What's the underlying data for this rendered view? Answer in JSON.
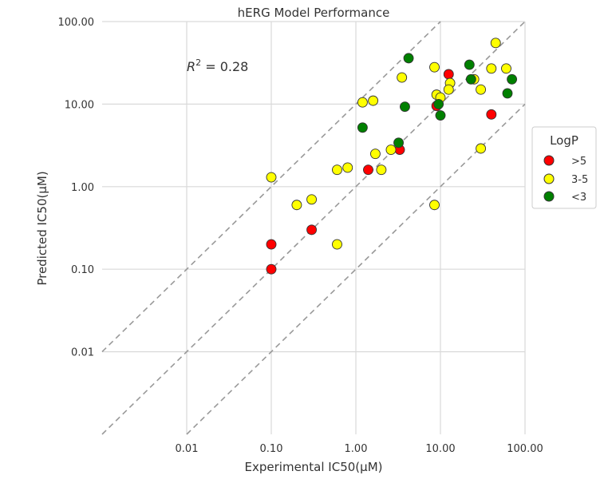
{
  "chart_data": {
    "type": "scatter",
    "title": "hERG Model Performance",
    "xlabel": "Experimental IC50(μM)",
    "ylabel": "Predicted IC50(μM)",
    "xscale": "log",
    "yscale": "log",
    "xlim": [
      0.001,
      100
    ],
    "ylim": [
      0.001,
      100
    ],
    "xticks": [
      0.01,
      0.1,
      1,
      10,
      100
    ],
    "xtick_labels": [
      "0.01",
      "0.10",
      "1.00",
      "10.00",
      "100.00"
    ],
    "yticks": [
      0.01,
      0.1,
      1,
      10,
      100
    ],
    "ytick_labels": [
      "0.01",
      "0.10",
      "1.00",
      "10.00",
      "100.00"
    ],
    "grid": true,
    "annotation": {
      "prefix": "R",
      "sup": "2",
      "text": " = 0.28"
    },
    "reference_lines": [
      {
        "label": "y = 10x",
        "factor": 10
      },
      {
        "label": "y = x",
        "factor": 1
      },
      {
        "label": "y = x/10",
        "factor": 0.1
      }
    ],
    "legend": {
      "title": "LogP",
      "placement": "right"
    },
    "series": [
      {
        "name": ">5",
        "color": "#ff0000",
        "points": [
          [
            0.1,
            0.2
          ],
          [
            0.1,
            0.1
          ],
          [
            0.3,
            0.3
          ],
          [
            1.4,
            1.6
          ],
          [
            3.3,
            2.8
          ],
          [
            9,
            9.5
          ],
          [
            12.5,
            23
          ],
          [
            40,
            7.5
          ]
        ]
      },
      {
        "name": "3-5",
        "color": "#ffff00",
        "points": [
          [
            0.1,
            1.3
          ],
          [
            0.2,
            0.6
          ],
          [
            0.3,
            0.7
          ],
          [
            0.6,
            1.6
          ],
          [
            0.8,
            1.7
          ],
          [
            0.6,
            0.2
          ],
          [
            1.2,
            10.5
          ],
          [
            1.6,
            11
          ],
          [
            1.7,
            2.5
          ],
          [
            2,
            1.6
          ],
          [
            2.6,
            2.8
          ],
          [
            3.5,
            21
          ],
          [
            8.5,
            28
          ],
          [
            9,
            13
          ],
          [
            10,
            12
          ],
          [
            13,
            18
          ],
          [
            12.5,
            15
          ],
          [
            25,
            20
          ],
          [
            30,
            15
          ],
          [
            40,
            27
          ],
          [
            45,
            55
          ],
          [
            60,
            27
          ],
          [
            30,
            2.9
          ],
          [
            8.5,
            0.6
          ]
        ]
      },
      {
        "name": "<3",
        "color": "#008000",
        "points": [
          [
            1.2,
            5.2
          ],
          [
            3.2,
            3.4
          ],
          [
            3.8,
            9.3
          ],
          [
            4.2,
            36
          ],
          [
            9.5,
            10
          ],
          [
            10,
            7.3
          ],
          [
            22,
            30
          ],
          [
            23,
            20
          ],
          [
            70,
            20
          ],
          [
            62,
            13.5
          ]
        ]
      }
    ]
  }
}
